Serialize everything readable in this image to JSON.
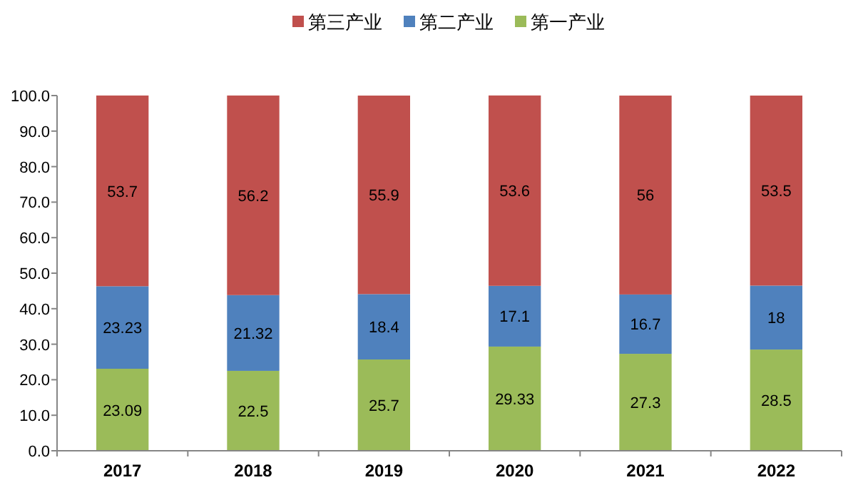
{
  "chart_data": {
    "type": "bar",
    "stacked": true,
    "legend": "top",
    "grid": false,
    "data_labels": true,
    "categories": [
      "2017",
      "2018",
      "2019",
      "2020",
      "2021",
      "2022"
    ],
    "ylim": [
      0,
      100
    ],
    "yticks": [
      {
        "value": 0,
        "label": "0.0"
      },
      {
        "value": 10,
        "label": "10.0"
      },
      {
        "value": 20,
        "label": "20.0"
      },
      {
        "value": 30,
        "label": "30.0"
      },
      {
        "value": 40,
        "label": "40.0"
      },
      {
        "value": 50,
        "label": "50.0"
      },
      {
        "value": 60,
        "label": "60.0"
      },
      {
        "value": 70,
        "label": "70.0"
      },
      {
        "value": 80,
        "label": "80.0"
      },
      {
        "value": 90,
        "label": "90.0"
      },
      {
        "value": 100,
        "label": "100.0"
      }
    ],
    "series": [
      {
        "name": "第一产业",
        "color": "#9bbb59",
        "values": [
          23.09,
          22.5,
          25.7,
          29.33,
          27.3,
          28.5
        ]
      },
      {
        "name": "第二产业",
        "color": "#4f81bd",
        "values": [
          23.23,
          21.32,
          18.4,
          17.1,
          16.7,
          18
        ]
      },
      {
        "name": "第三产业",
        "color": "#c0504d",
        "values": [
          53.7,
          56.2,
          55.9,
          53.6,
          56,
          53.5
        ]
      }
    ]
  }
}
